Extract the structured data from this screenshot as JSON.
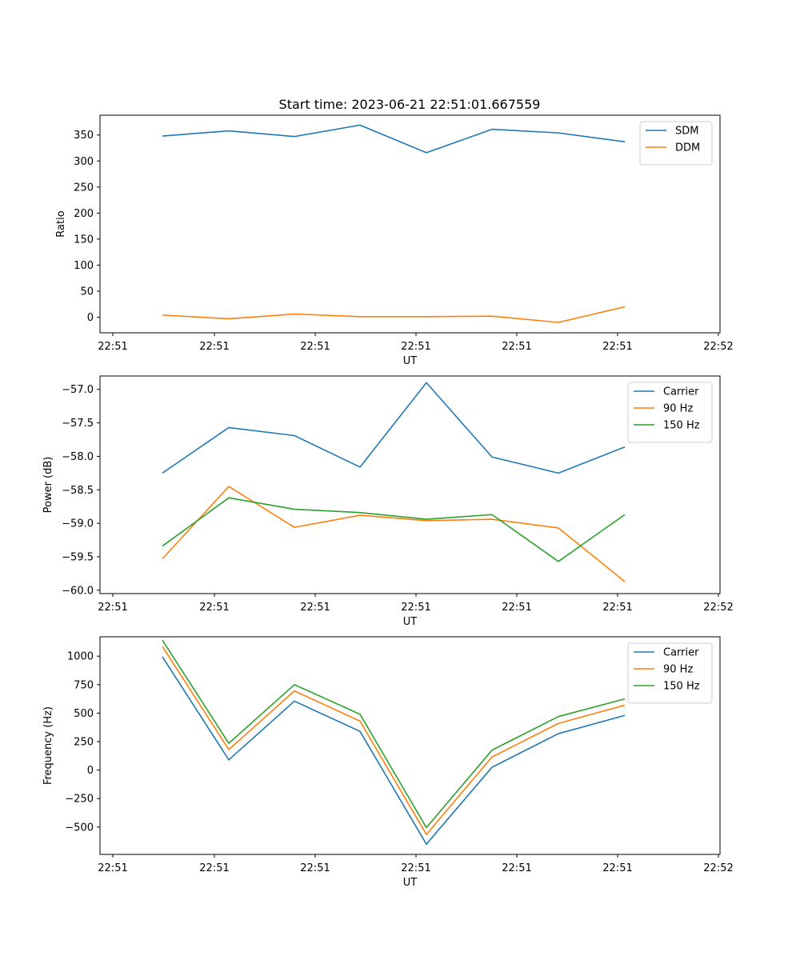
{
  "figure": {
    "title": "Start time: 2023-06-21 22:51:01.667559"
  },
  "chart_data": [
    {
      "type": "line",
      "xlabel": "UT",
      "ylabel": "Ratio",
      "x_ticks": [
        "22:51",
        "22:51",
        "22:51",
        "22:51",
        "22:51",
        "22:51",
        "22:51"
      ],
      "x_last_tick": "22:52",
      "yticks": [
        0,
        50,
        100,
        150,
        200,
        250,
        300,
        350
      ],
      "ylim": [
        -30,
        388
      ],
      "legend_position": "upper right",
      "series": [
        {
          "name": "SDM",
          "color": "#1f77b4",
          "values": [
            348,
            358,
            347,
            369,
            316,
            361,
            354,
            337
          ]
        },
        {
          "name": "DDM",
          "color": "#ff7f0e",
          "values": [
            4,
            -3,
            6,
            1,
            1,
            2,
            -10,
            20
          ]
        }
      ]
    },
    {
      "type": "line",
      "xlabel": "UT",
      "ylabel": "Power (dB)",
      "x_ticks": [
        "22:51",
        "22:51",
        "22:51",
        "22:51",
        "22:51",
        "22:51",
        "22:51"
      ],
      "x_last_tick": "22:52",
      "yticks": [
        -60.0,
        -59.5,
        -59.0,
        -58.5,
        -58.0,
        -57.5,
        -57.0
      ],
      "ylim": [
        -60.05,
        -56.8
      ],
      "legend_position": "upper right",
      "series": [
        {
          "name": "Carrier",
          "color": "#1f77b4",
          "values": [
            -58.25,
            -57.57,
            -57.69,
            -58.16,
            -56.9,
            -58.01,
            -58.25,
            -57.86
          ]
        },
        {
          "name": "90 Hz",
          "color": "#ff7f0e",
          "values": [
            -59.53,
            -58.45,
            -59.06,
            -58.88,
            -58.96,
            -58.94,
            -59.07,
            -59.87
          ]
        },
        {
          "name": "150 Hz",
          "color": "#2ca02c",
          "values": [
            -59.34,
            -58.62,
            -58.79,
            -58.84,
            -58.94,
            -58.87,
            -59.57,
            -58.87
          ]
        }
      ]
    },
    {
      "type": "line",
      "xlabel": "UT",
      "ylabel": "Frequency (Hz)",
      "x_ticks": [
        "22:51",
        "22:51",
        "22:51",
        "22:51",
        "22:51",
        "22:51",
        "22:51"
      ],
      "x_last_tick": "22:52",
      "yticks": [
        -500,
        -250,
        0,
        250,
        500,
        750,
        1000
      ],
      "ylim": [
        -740,
        1170
      ],
      "legend_position": "upper right",
      "series": [
        {
          "name": "Carrier",
          "color": "#1f77b4",
          "values": [
            995,
            90,
            605,
            340,
            -650,
            25,
            320,
            480
          ]
        },
        {
          "name": "90 Hz",
          "color": "#ff7f0e",
          "values": [
            1085,
            180,
            695,
            430,
            -565,
            115,
            410,
            570
          ]
        },
        {
          "name": "150 Hz",
          "color": "#2ca02c",
          "values": [
            1140,
            235,
            750,
            490,
            -505,
            175,
            470,
            625
          ]
        }
      ]
    }
  ]
}
